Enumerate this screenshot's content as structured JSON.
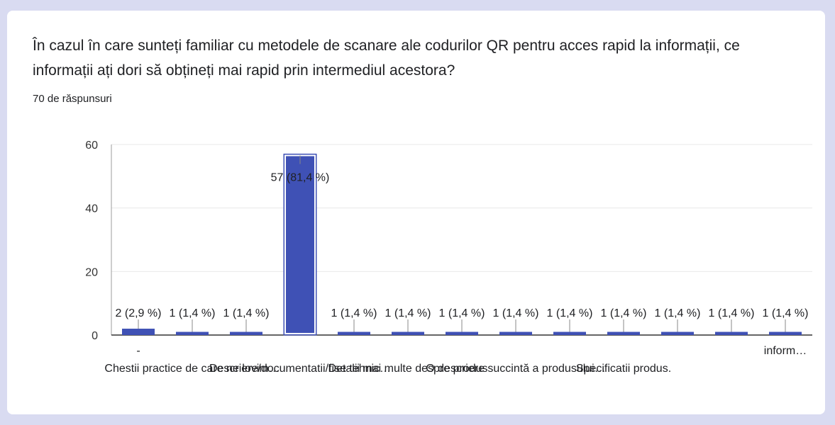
{
  "question": {
    "title": "În cazul în care sunteți familiar cu metodele de scanare ale codurilor QR pentru acces rapid la informații, ce informații ați dori să obțineți mai rapid prin intermediul acestora?",
    "response_count": "70 de răspunsuri"
  },
  "colors": {
    "bar": "#3f51b5",
    "background": "#d9dbf1",
    "card": "#ffffff",
    "grid": "#e8e8e8",
    "axis": "#333333",
    "text": "#202124"
  },
  "chart_data": {
    "type": "bar",
    "categories": [
      "-",
      "Chestii practice de care ne lovim…",
      "",
      "Descriere/documentatii/fise tehnic…",
      "",
      "Detalii mai multe despre produs",
      "",
      "O descriere succintă a produsului…",
      "",
      "Specificatii produs.",
      "",
      "",
      "inform…"
    ],
    "values": [
      2,
      1,
      1,
      57,
      1,
      1,
      1,
      1,
      1,
      1,
      1,
      1,
      1
    ],
    "data_labels": [
      "2 (2,9 %)",
      "1 (1,4 %)",
      "1 (1,4 %)",
      "57 (81,4 %)",
      "1 (1,4 %)",
      "1 (1,4 %)",
      "1 (1,4 %)",
      "1 (1,4 %)",
      "1 (1,4 %)",
      "1 (1,4 %)",
      "1 (1,4 %)",
      "1 (1,4 %)",
      "1 (1,4 %)"
    ],
    "y_ticks": [
      "0",
      "20",
      "40",
      "60"
    ],
    "ylim": [
      0,
      60
    ],
    "grid": true,
    "highlighted_index": 3
  }
}
